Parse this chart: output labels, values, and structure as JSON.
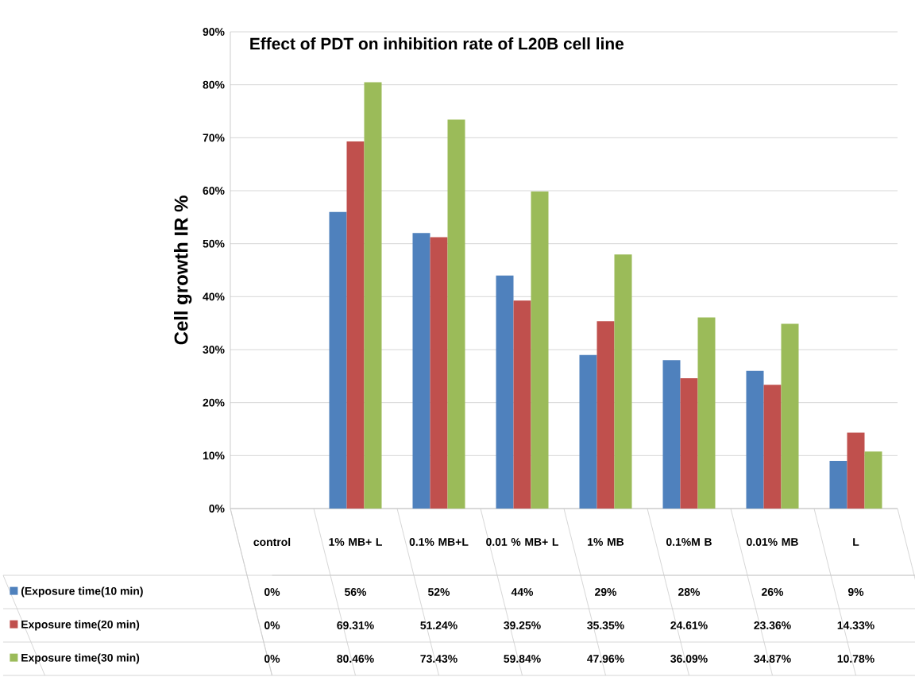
{
  "chart_data": {
    "type": "bar",
    "title": "Effect of PDT on inhibition rate of L20B cell line",
    "ylabel": "Cell growth  IR %",
    "categories": [
      "control",
      "1% MB+ L",
      "0.1% MB+L",
      "0.01 % MB+ L",
      "1% MB",
      "0.1%M B",
      "0.01% MB",
      "L"
    ],
    "series": [
      {
        "name": "(Exposure time(10 min)",
        "color": "#4f81bd",
        "values": [
          0,
          56,
          52,
          44,
          29,
          28,
          26,
          9
        ],
        "value_labels": [
          "0%",
          "56%",
          "52%",
          "44%",
          "29%",
          "28%",
          "26%",
          "9%"
        ]
      },
      {
        "name": "Exposure time(20 min)",
        "color": "#c0504d",
        "values": [
          0,
          69.31,
          51.24,
          39.25,
          35.35,
          24.61,
          23.36,
          14.33
        ],
        "value_labels": [
          "0%",
          "69.31%",
          "51.24%",
          "39.25%",
          "35.35%",
          "24.61%",
          "23.36%",
          "14.33%"
        ]
      },
      {
        "name": "Exposure time(30 min)",
        "color": "#9bbb59",
        "values": [
          0,
          80.46,
          73.43,
          59.84,
          47.96,
          36.09,
          34.87,
          10.78
        ],
        "value_labels": [
          "0%",
          "80.46%",
          "73.43%",
          "59.84%",
          "47.96%",
          "36.09%",
          "34.87%",
          "10.78%"
        ]
      }
    ],
    "ylim": [
      0,
      90
    ],
    "yticks": [
      {
        "value": 0,
        "label": "0%"
      },
      {
        "value": 10,
        "label": "10%"
      },
      {
        "value": 20,
        "label": "20%"
      },
      {
        "value": 30,
        "label": "30%"
      },
      {
        "value": 40,
        "label": "40%"
      },
      {
        "value": 50,
        "label": "50%"
      },
      {
        "value": 60,
        "label": "60%"
      },
      {
        "value": 70,
        "label": "70%"
      },
      {
        "value": 80,
        "label": "80%"
      },
      {
        "value": 90,
        "label": "90%"
      }
    ],
    "grid": "y",
    "legend": "bottom left"
  }
}
